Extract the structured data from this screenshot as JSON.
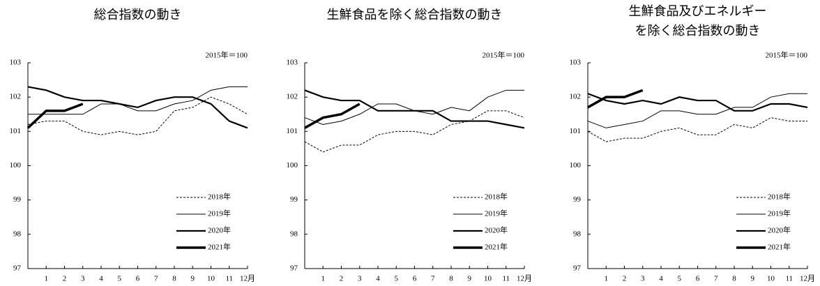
{
  "chart_data": [
    {
      "type": "line",
      "title": "総合指数の動き",
      "annotation": "2015年＝100",
      "categories": [
        null,
        "1",
        "2",
        "3",
        "4",
        "5",
        "6",
        "7",
        "8",
        "9",
        "10",
        "11",
        "12月"
      ],
      "ylim": [
        97,
        103
      ],
      "yticks": [
        97,
        98,
        99,
        100,
        101,
        102,
        103
      ],
      "series": [
        {
          "name": "2018年",
          "color": "#000000",
          "values": [
            101.2,
            101.3,
            101.3,
            101.0,
            100.9,
            101.0,
            100.9,
            101.0,
            101.6,
            101.7,
            102.0,
            101.8,
            101.5
          ]
        },
        {
          "name": "2019年",
          "color": "#000000",
          "values": [
            101.5,
            101.5,
            101.5,
            101.5,
            101.8,
            101.8,
            101.6,
            101.6,
            101.8,
            101.9,
            102.2,
            102.3,
            102.3
          ]
        },
        {
          "name": "2020年",
          "color": "#000000",
          "values": [
            102.3,
            102.2,
            102.0,
            101.9,
            101.9,
            101.8,
            101.7,
            101.9,
            102.0,
            102.0,
            101.8,
            101.3,
            101.1
          ]
        },
        {
          "name": "2021年",
          "color": "#000000",
          "values": [
            101.1,
            101.6,
            101.6,
            101.8,
            null,
            null,
            null,
            null,
            null,
            null,
            null,
            null,
            null
          ]
        }
      ]
    },
    {
      "type": "line",
      "title": "生鮮食品を除く総合指数の動き",
      "annotation": "2015年＝100",
      "categories": [
        null,
        "1",
        "2",
        "3",
        "4",
        "5",
        "6",
        "7",
        "8",
        "9",
        "10",
        "11",
        "12月"
      ],
      "ylim": [
        97,
        103
      ],
      "yticks": [
        97,
        98,
        99,
        100,
        101,
        102,
        103
      ],
      "series": [
        {
          "name": "2018年",
          "color": "#000000",
          "values": [
            100.7,
            100.4,
            100.6,
            100.6,
            100.9,
            101.0,
            101.0,
            100.9,
            101.2,
            101.3,
            101.6,
            101.6,
            101.4
          ]
        },
        {
          "name": "2019年",
          "color": "#000000",
          "values": [
            101.4,
            101.2,
            101.3,
            101.5,
            101.8,
            101.8,
            101.6,
            101.5,
            101.7,
            101.6,
            102.0,
            102.2,
            102.2
          ]
        },
        {
          "name": "2020年",
          "color": "#000000",
          "values": [
            102.2,
            102.0,
            101.9,
            101.9,
            101.6,
            101.6,
            101.6,
            101.6,
            101.3,
            101.3,
            101.3,
            101.2,
            101.1
          ]
        },
        {
          "name": "2021年",
          "color": "#000000",
          "values": [
            101.1,
            101.4,
            101.5,
            101.8,
            null,
            null,
            null,
            null,
            null,
            null,
            null,
            null,
            null
          ]
        }
      ]
    },
    {
      "type": "line",
      "title": [
        "生鮮食品及びエネルギー",
        "を除く総合指数の動き"
      ],
      "annotation": "2015年＝100",
      "categories": [
        null,
        "1",
        "2",
        "3",
        "4",
        "5",
        "6",
        "7",
        "8",
        "9",
        "10",
        "11",
        "12月"
      ],
      "ylim": [
        97,
        103
      ],
      "yticks": [
        97,
        98,
        99,
        100,
        101,
        102,
        103
      ],
      "series": [
        {
          "name": "2018年",
          "color": "#000000",
          "values": [
            101.0,
            100.7,
            100.8,
            100.8,
            101.0,
            101.1,
            100.9,
            100.9,
            101.2,
            101.1,
            101.4,
            101.3,
            101.3
          ]
        },
        {
          "name": "2019年",
          "color": "#000000",
          "values": [
            101.3,
            101.1,
            101.2,
            101.3,
            101.6,
            101.6,
            101.5,
            101.5,
            101.7,
            101.7,
            102.0,
            102.1,
            102.1
          ]
        },
        {
          "name": "2020年",
          "color": "#000000",
          "values": [
            102.1,
            101.9,
            101.8,
            101.9,
            101.8,
            102.0,
            101.9,
            101.9,
            101.6,
            101.6,
            101.8,
            101.8,
            101.7
          ]
        },
        {
          "name": "2021年",
          "color": "#000000",
          "values": [
            101.7,
            102.0,
            102.0,
            102.2,
            null,
            null,
            null,
            null,
            null,
            null,
            null,
            null,
            null
          ]
        }
      ]
    }
  ]
}
